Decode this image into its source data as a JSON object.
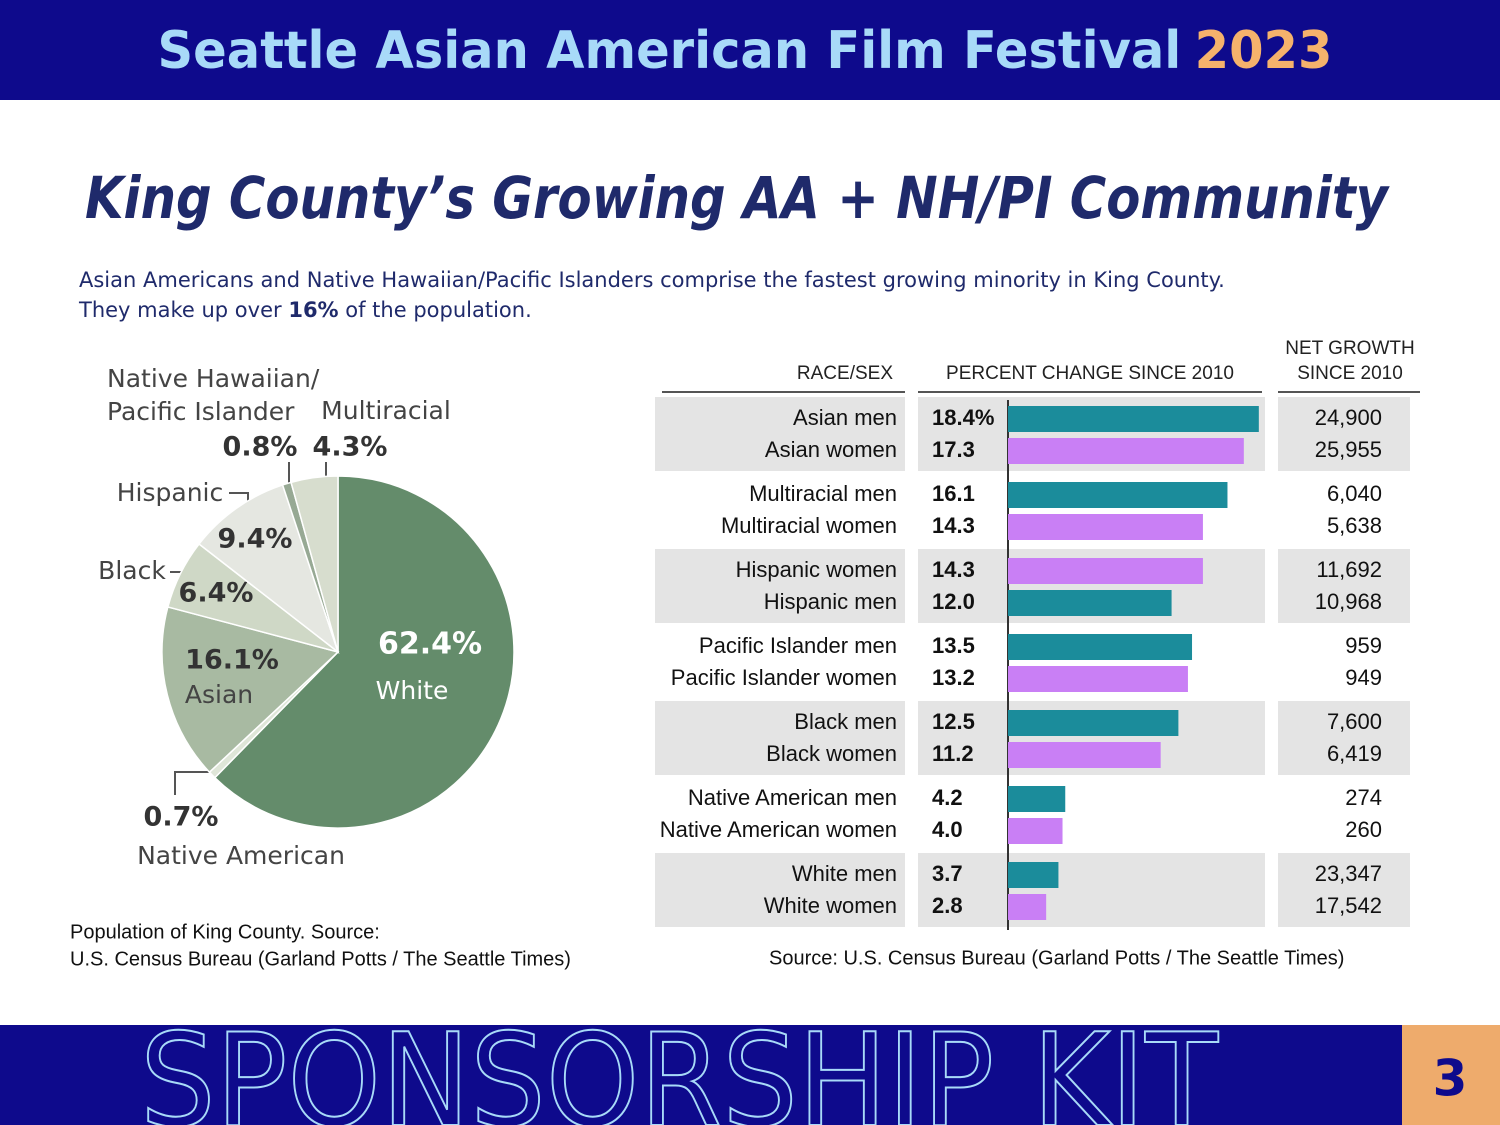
{
  "header": {
    "title": "Seattle Asian American Film Festival",
    "year": "2023"
  },
  "heading": "King County’s Growing AA + NH/PI Community",
  "intro": {
    "line1": "Asian Americans and Native Hawaiian/Pacific Islanders comprise the fastest growing minority in King County.",
    "line2": [
      "They make up over ",
      "16%",
      " of the population."
    ]
  },
  "pie": {
    "type": "pie",
    "slices": [
      {
        "label": "White",
        "value": 62.4,
        "value_label": "62.4%",
        "color": "#648c6b"
      },
      {
        "label": "Native American",
        "value": 0.7,
        "value_label": "0.7%",
        "color": "#dfe6d8"
      },
      {
        "label": "Asian",
        "value": 16.1,
        "value_label": "16.1%",
        "color": "#a8baa2"
      },
      {
        "label": "Black",
        "value": 6.4,
        "value_label": "6.4%",
        "color": "#cfd8c6"
      },
      {
        "label": "Hispanic",
        "value": 9.4,
        "value_label": "9.4%",
        "color": "#e5e7e1"
      },
      {
        "label": "Native Hawaiian/ Pacific Islander",
        "value": 0.8,
        "value_label": "0.8%",
        "color": "#97a994"
      },
      {
        "label": "Multiracial",
        "value": 4.3,
        "value_label": "4.3%",
        "color": "#d7ddce"
      }
    ],
    "caption": [
      "Population of King County. Source:",
      "U.S. Census Bureau (Garland Potts / The Seattle Times)"
    ]
  },
  "growth": {
    "type": "bar",
    "headers": [
      "RACE/SEX",
      "PERCENT CHANGE SINCE 2010",
      "NET GROWTH SINCE 2010"
    ],
    "xlim": [
      0,
      19
    ],
    "rows": [
      {
        "label": "Asian men",
        "value": 18.4,
        "value_label": "18.4%",
        "net": "24,900",
        "color": "#1b8c9b"
      },
      {
        "label": "Asian women",
        "value": 17.3,
        "value_label": "17.3",
        "net": "25,955",
        "color": "#c97ff5"
      },
      {
        "label": "Multiracial men",
        "value": 16.1,
        "value_label": "16.1",
        "net": "6,040",
        "color": "#1b8c9b"
      },
      {
        "label": "Multiracial women",
        "value": 14.3,
        "value_label": "14.3",
        "net": "5,638",
        "color": "#c97ff5"
      },
      {
        "label": "Hispanic women",
        "value": 14.3,
        "value_label": "14.3",
        "net": "11,692",
        "color": "#c97ff5"
      },
      {
        "label": "Hispanic men",
        "value": 12.0,
        "value_label": "12.0",
        "net": "10,968",
        "color": "#1b8c9b"
      },
      {
        "label": "Pacific Islander men",
        "value": 13.5,
        "value_label": "13.5",
        "net": "959",
        "color": "#1b8c9b"
      },
      {
        "label": "Pacific Islander women",
        "value": 13.2,
        "value_label": "13.2",
        "net": "949",
        "color": "#c97ff5"
      },
      {
        "label": "Black men",
        "value": 12.5,
        "value_label": "12.5",
        "net": "7,600",
        "color": "#1b8c9b"
      },
      {
        "label": "Black women",
        "value": 11.2,
        "value_label": "11.2",
        "net": "6,419",
        "color": "#c97ff5"
      },
      {
        "label": "Native American men",
        "value": 4.2,
        "value_label": "4.2",
        "net": "274",
        "color": "#1b8c9b"
      },
      {
        "label": "Native American women",
        "value": 4.0,
        "value_label": "4.0",
        "net": "260",
        "color": "#c97ff5"
      },
      {
        "label": "White men",
        "value": 3.7,
        "value_label": "3.7",
        "net": "23,347",
        "color": "#1b8c9b"
      },
      {
        "label": "White women",
        "value": 2.8,
        "value_label": "2.8",
        "net": "17,542",
        "color": "#c97ff5"
      }
    ],
    "source": "Source: U.S. Census Bureau (Garland Potts / The Seattle Times)"
  },
  "footer": {
    "title": "SPONSORSHIP KIT",
    "page": "3"
  }
}
